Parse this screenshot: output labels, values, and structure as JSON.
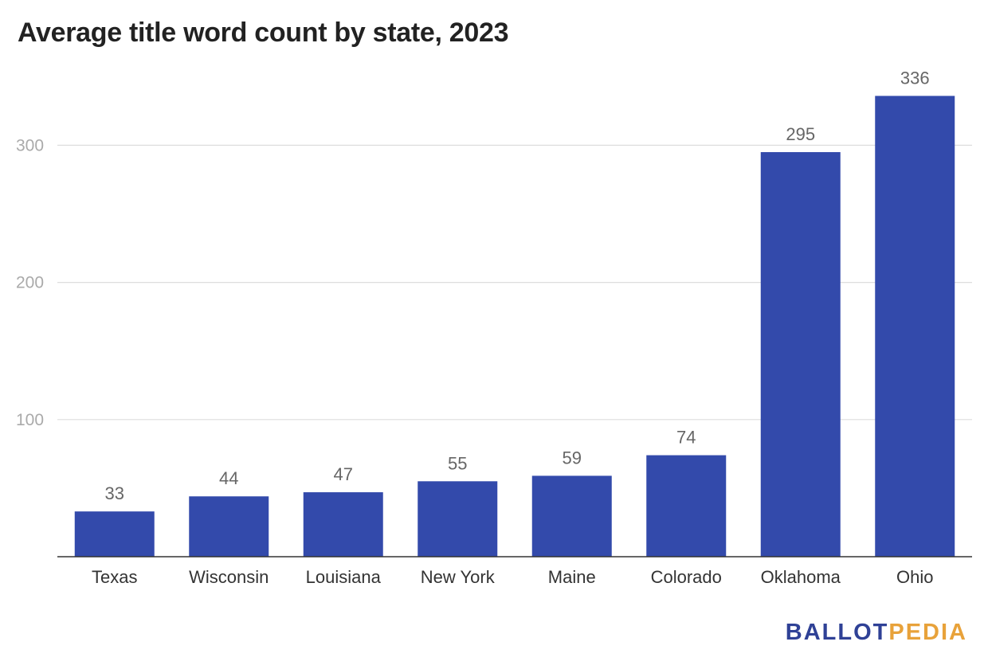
{
  "chart_data": {
    "type": "bar",
    "title": "Average title word count by state, 2023",
    "categories": [
      "Texas",
      "Wisconsin",
      "Louisiana",
      "New York",
      "Maine",
      "Colorado",
      "Oklahoma",
      "Ohio"
    ],
    "values": [
      33,
      44,
      47,
      55,
      59,
      74,
      295,
      336
    ],
    "yticks": [
      "100",
      "200",
      "300"
    ],
    "ylim": [
      0,
      360
    ],
    "grid": true,
    "bar_color": "#334aab"
  },
  "branding": {
    "part1": "BALLOT",
    "part2": "PEDIA",
    "color1": "#2f4196",
    "color2": "#e8a23a"
  }
}
